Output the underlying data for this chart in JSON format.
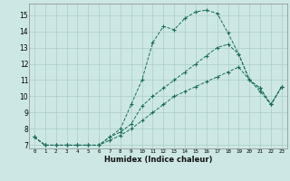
{
  "title": "",
  "xlabel": "Humidex (Indice chaleur)",
  "ylabel": "",
  "bg_color": "#cde8e4",
  "grid_color": "#aaccc8",
  "line_color": "#1a6b5a",
  "xlim": [
    -0.5,
    23.5
  ],
  "ylim": [
    6.8,
    15.7
  ],
  "yticks": [
    7,
    8,
    9,
    10,
    11,
    12,
    13,
    14,
    15
  ],
  "xticks": [
    0,
    1,
    2,
    3,
    4,
    5,
    6,
    7,
    8,
    9,
    10,
    11,
    12,
    13,
    14,
    15,
    16,
    17,
    18,
    19,
    20,
    21,
    22,
    23
  ],
  "series": [
    {
      "x": [
        0,
        1,
        2,
        3,
        4,
        5,
        6,
        7,
        8,
        9,
        10,
        11,
        12,
        13,
        14,
        15,
        16,
        17,
        18,
        19,
        20,
        21,
        22,
        23
      ],
      "y": [
        7.5,
        7.0,
        7.0,
        7.0,
        7.0,
        7.0,
        7.0,
        7.5,
        8.0,
        9.5,
        11.0,
        13.3,
        14.3,
        14.1,
        14.8,
        15.2,
        15.3,
        15.1,
        13.9,
        12.6,
        11.0,
        10.5,
        9.5,
        10.6
      ]
    },
    {
      "x": [
        0,
        1,
        2,
        3,
        4,
        5,
        6,
        7,
        8,
        9,
        10,
        11,
        12,
        13,
        14,
        15,
        16,
        17,
        18,
        19,
        20,
        21,
        22,
        23
      ],
      "y": [
        7.5,
        7.0,
        7.0,
        7.0,
        7.0,
        7.0,
        7.0,
        7.5,
        7.8,
        8.3,
        9.4,
        10.0,
        10.5,
        11.0,
        11.5,
        12.0,
        12.5,
        13.0,
        13.2,
        12.6,
        11.0,
        10.5,
        9.5,
        10.6
      ]
    },
    {
      "x": [
        0,
        1,
        2,
        3,
        4,
        5,
        6,
        7,
        8,
        9,
        10,
        11,
        12,
        13,
        14,
        15,
        16,
        17,
        18,
        19,
        20,
        21,
        22,
        23
      ],
      "y": [
        7.5,
        7.0,
        7.0,
        7.0,
        7.0,
        7.0,
        7.0,
        7.3,
        7.6,
        8.0,
        8.5,
        9.0,
        9.5,
        10.0,
        10.3,
        10.6,
        10.9,
        11.2,
        11.5,
        11.8,
        11.0,
        10.3,
        9.5,
        10.6
      ]
    }
  ]
}
